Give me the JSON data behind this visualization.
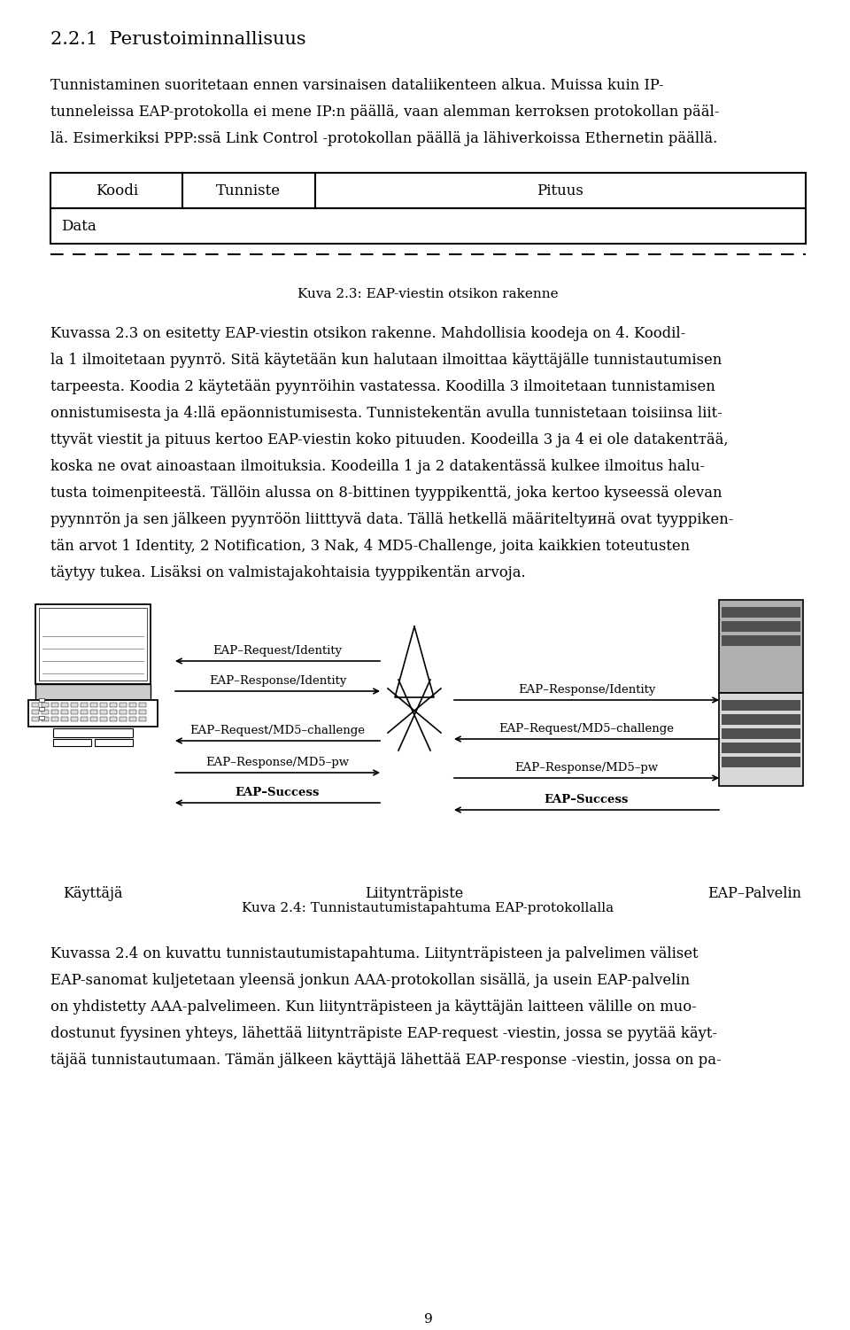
{
  "title": "2.2.1  Perustoiminnallisuus",
  "fig1_caption": "Kuva 2.3: EAP-viestin otsikon rakenne",
  "fig2_caption": "Kuva 2.4: Tunnistautumistapahtuma EAP-protokollalla",
  "page_number": "9",
  "background_color": "#ffffff",
  "text_color": "#000000",
  "para1_lines": [
    "Tunnistaminen suoritetaan ennen varsinaisen dataliikenteen alkua. Muissa kuin IP-",
    "tunneleissa EAP-protokolla ei mene IP:n päällä, vaan alemman kerroksen protokollan pääl-",
    "lä. Esimerkiksi PPP:ssä Link Control -protokollan päällä ja lähiverkoissa Ethernetin päällä."
  ],
  "para2_lines": [
    "Kuvassa 2.3 on esitetty EAP-viestin otsikon rakenne. Mahdollisia koodeja on 4. Koodil-",
    "la 1 ilmoitetaan pyynтö. Sitä käytetään kun halutaan ilmoittaa käyttäjälle tunnistautumisen",
    "tarpeesta. Koodia 2 käytetään pyynтöihin vastatessa. Koodilla 3 ilmoitetaan tunnistamisen",
    "onnistumisesta ja 4:llä epäonnistumisesta. Tunnistekentän avulla tunnistetaan toisiinsa liit-",
    "ttyvät viestit ja pituus kertoo EAP-viestin koko pituuden. Koodeilla 3 ja 4 ei ole datakentтää,",
    "koska ne ovat ainoastaan ilmoituksia. Koodeilla 1 ja 2 datakentässä kulkee ilmoitus halu-",
    "tusta toimenpiteestä. Tällöin alussa on 8-bittinen tyyppikenttä, joka kertoo kyseessä olevan",
    "pyynnтön ja sen jälkeen pyynтöön liitttyvä data. Tällä hetkellä määriteltyинä ovat tyyppiken-",
    "tän arvot 1 Identity, 2 Notification, 3 Nak, 4 MD5-Challenge, joita kaikkien toteutusten",
    "täytyy tukea. Lisäksi on valmistajakohtaisia tyyppikentän arvoja."
  ],
  "para3_lines": [
    "Kuvassa 2.4 on kuvattu tunnistautumistapahtuma. Liityntтäpisteen ja palvelimen väliset",
    "EAP-sanomat kuljetetaan yleensä jonkun AAA-protokollan sisällä, ja usein EAP-palvelin",
    "on yhdistetty AAA-palvelimeen. Kun liityntтäpisteen ja käyttäjän laitteen välille on muo-",
    "dostunut fyysinen yhteys, lähettää liityntтäpiste EAP-request -viestin, jossa se pyytää käyt-",
    "täjää tunnistautumaan. Tämän jälkeen käyttäjä lähettää EAP-response -viestin, jossa on pa-"
  ],
  "label_kayttaja": "Käyttäjä",
  "label_liityntapiste": "Liityntтäpiste",
  "label_palvelin": "EAP–Palvelin",
  "msg_req_id": "EAP–Request/Identity",
  "msg_resp_id": "EAP–Response/Identity",
  "msg_req_md5": "EAP–Request/MD5–challenge",
  "msg_resp_md5": "EAP–Response/MD5–pw",
  "msg_success": "EAP–Success"
}
